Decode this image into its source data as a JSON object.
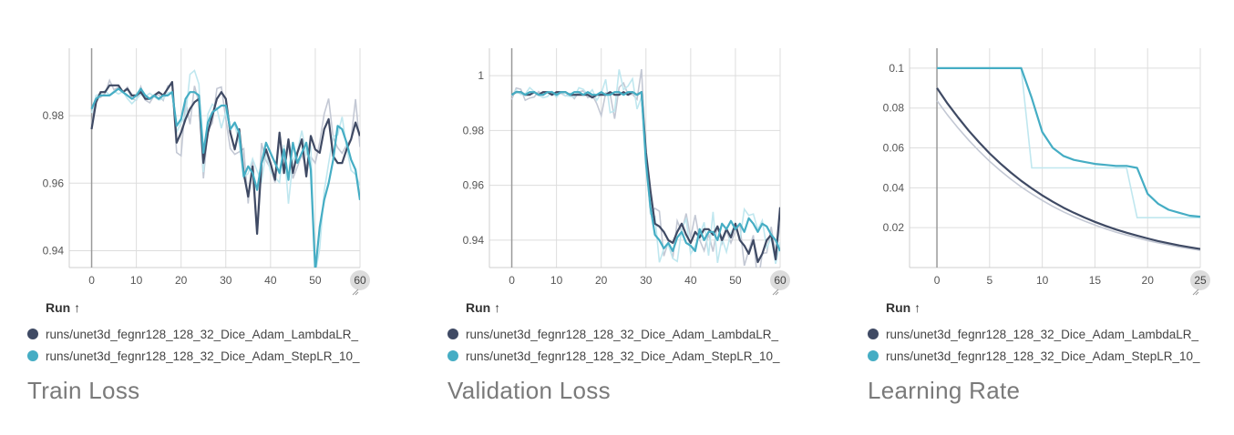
{
  "colors": {
    "dark": "#3f4a64",
    "teal": "#45adc4",
    "dark_faint": "#c3c8d4",
    "teal_faint": "#c0e7ef",
    "grid": "#dddddd"
  },
  "run_header": "Run ↑",
  "legend": [
    {
      "label": "runs/unet3d_fegnr128_128_32_Dice_Adam_LambdaLR_",
      "color": "#3f4a64"
    },
    {
      "label": "runs/unet3d_fegnr128_128_32_Dice_Adam_StepLR_10_",
      "color": "#45adc4"
    }
  ],
  "panels": [
    {
      "title": "Train Loss",
      "badge": "60"
    },
    {
      "title": "Validation Loss",
      "badge": "60"
    },
    {
      "title": "Learning Rate",
      "badge": "25"
    }
  ],
  "chart_data": [
    {
      "type": "line",
      "title": "Train Loss",
      "xlim": [
        -5,
        60
      ],
      "ylim": [
        0.935,
        1.0
      ],
      "xticks": [
        0,
        10,
        20,
        30,
        40,
        50,
        60
      ],
      "yticks": [
        0.94,
        0.96,
        0.98
      ],
      "ytick_labels": [
        "0.94",
        "0.96",
        "0.98"
      ],
      "grid": true,
      "series": [
        {
          "name": "runs/unet3d_fegnr128_128_32_Dice_Adam_LambdaLR_",
          "color": "#3f4a64",
          "x": [
            0,
            1,
            2,
            3,
            4,
            5,
            6,
            7,
            8,
            9,
            10,
            11,
            12,
            13,
            14,
            15,
            16,
            17,
            18,
            19,
            20,
            21,
            22,
            23,
            24,
            25,
            26,
            27,
            28,
            29,
            30,
            31,
            32,
            33,
            34,
            35,
            36,
            37,
            38,
            39,
            40,
            41,
            42,
            43,
            44,
            45,
            46,
            47,
            48,
            49,
            50,
            51,
            52,
            53,
            54,
            55,
            56,
            57,
            58,
            59,
            60
          ],
          "y": [
            0.976,
            0.984,
            0.987,
            0.987,
            0.989,
            0.989,
            0.989,
            0.987,
            0.988,
            0.986,
            0.986,
            0.987,
            0.985,
            0.985,
            0.986,
            0.987,
            0.986,
            0.988,
            0.99,
            0.972,
            0.975,
            0.979,
            0.982,
            0.984,
            0.985,
            0.966,
            0.975,
            0.98,
            0.985,
            0.987,
            0.985,
            0.975,
            0.97,
            0.976,
            0.963,
            0.956,
            0.965,
            0.945,
            0.966,
            0.97,
            0.966,
            0.961,
            0.975,
            0.963,
            0.973,
            0.963,
            0.969,
            0.973,
            0.962,
            0.974,
            0.97,
            0.969,
            0.976,
            0.979,
            0.968,
            0.966,
            0.966,
            0.97,
            0.973,
            0.978,
            0.974
          ]
        },
        {
          "name": "runs/unet3d_fegnr128_128_32_Dice_Adam_StepLR_10_",
          "color": "#45adc4",
          "x": [
            0,
            1,
            2,
            3,
            4,
            5,
            6,
            7,
            8,
            9,
            10,
            11,
            12,
            13,
            14,
            15,
            16,
            17,
            18,
            19,
            20,
            21,
            22,
            23,
            24,
            25,
            26,
            27,
            28,
            29,
            30,
            31,
            32,
            33,
            34,
            35,
            36,
            37,
            38,
            39,
            40,
            41,
            42,
            43,
            44,
            45,
            46,
            47,
            48,
            49,
            50,
            51,
            52,
            53,
            54,
            55,
            56,
            57,
            58,
            59,
            60
          ],
          "y": [
            0.982,
            0.985,
            0.986,
            0.986,
            0.986,
            0.987,
            0.988,
            0.987,
            0.986,
            0.985,
            0.986,
            0.988,
            0.986,
            0.985,
            0.986,
            0.985,
            0.986,
            0.986,
            0.987,
            0.977,
            0.979,
            0.985,
            0.987,
            0.987,
            0.986,
            0.969,
            0.978,
            0.981,
            0.982,
            0.983,
            0.983,
            0.976,
            0.978,
            0.975,
            0.962,
            0.965,
            0.963,
            0.958,
            0.966,
            0.972,
            0.969,
            0.966,
            0.963,
            0.97,
            0.961,
            0.972,
            0.966,
            0.969,
            0.972,
            0.964,
            0.934,
            0.947,
            0.955,
            0.96,
            0.967,
            0.977,
            0.976,
            0.972,
            0.967,
            0.964,
            0.955
          ]
        }
      ]
    },
    {
      "type": "line",
      "title": "Validation Loss",
      "xlim": [
        -5,
        60
      ],
      "ylim": [
        0.93,
        1.01
      ],
      "xticks": [
        0,
        10,
        20,
        30,
        40,
        50,
        60
      ],
      "yticks": [
        0.94,
        0.96,
        0.98,
        1.0
      ],
      "ytick_labels": [
        "0.94",
        "0.96",
        "0.98",
        "1"
      ],
      "grid": true,
      "series": [
        {
          "name": "runs/unet3d_fegnr128_128_32_Dice_Adam_LambdaLR_",
          "color": "#3f4a64",
          "x": [
            0,
            1,
            2,
            3,
            4,
            5,
            6,
            7,
            8,
            9,
            10,
            11,
            12,
            13,
            14,
            15,
            16,
            17,
            18,
            19,
            20,
            21,
            22,
            23,
            24,
            25,
            26,
            27,
            28,
            29,
            30,
            31,
            32,
            33,
            34,
            35,
            36,
            37,
            38,
            39,
            40,
            41,
            42,
            43,
            44,
            45,
            46,
            47,
            48,
            49,
            50,
            51,
            52,
            53,
            54,
            55,
            56,
            57,
            58,
            59,
            60
          ],
          "y": [
            0.993,
            0.994,
            0.994,
            0.993,
            0.993,
            0.994,
            0.993,
            0.994,
            0.994,
            0.993,
            0.994,
            0.994,
            0.994,
            0.993,
            0.993,
            0.993,
            0.993,
            0.993,
            0.992,
            0.993,
            0.993,
            0.993,
            0.994,
            0.993,
            0.993,
            0.994,
            0.993,
            0.994,
            0.993,
            0.994,
            0.972,
            0.958,
            0.946,
            0.945,
            0.943,
            0.94,
            0.939,
            0.943,
            0.946,
            0.942,
            0.939,
            0.943,
            0.941,
            0.944,
            0.944,
            0.942,
            0.945,
            0.94,
            0.944,
            0.941,
            0.946,
            0.94,
            0.938,
            0.935,
            0.94,
            0.932,
            0.935,
            0.94,
            0.942,
            0.933,
            0.952
          ]
        },
        {
          "name": "runs/unet3d_fegnr128_128_32_Dice_Adam_StepLR_10_",
          "color": "#45adc4",
          "x": [
            0,
            1,
            2,
            3,
            4,
            5,
            6,
            7,
            8,
            9,
            10,
            11,
            12,
            13,
            14,
            15,
            16,
            17,
            18,
            19,
            20,
            21,
            22,
            23,
            24,
            25,
            26,
            27,
            28,
            29,
            30,
            31,
            32,
            33,
            34,
            35,
            36,
            37,
            38,
            39,
            40,
            41,
            42,
            43,
            44,
            45,
            46,
            47,
            48,
            49,
            50,
            51,
            52,
            53,
            54,
            55,
            56,
            57,
            58,
            59,
            60
          ],
          "y": [
            0.993,
            0.994,
            0.994,
            0.993,
            0.994,
            0.994,
            0.993,
            0.993,
            0.994,
            0.994,
            0.993,
            0.994,
            0.994,
            0.993,
            0.994,
            0.994,
            0.993,
            0.994,
            0.993,
            0.993,
            0.994,
            0.993,
            0.993,
            0.994,
            0.994,
            0.993,
            0.994,
            0.994,
            0.993,
            0.994,
            0.968,
            0.952,
            0.942,
            0.94,
            0.937,
            0.939,
            0.936,
            0.941,
            0.943,
            0.939,
            0.938,
            0.936,
            0.944,
            0.94,
            0.943,
            0.943,
            0.94,
            0.946,
            0.944,
            0.947,
            0.944,
            0.946,
            0.943,
            0.948,
            0.946,
            0.943,
            0.946,
            0.945,
            0.942,
            0.94,
            0.936
          ]
        }
      ]
    },
    {
      "type": "line",
      "title": "Learning Rate",
      "xlim": [
        -2.6,
        25
      ],
      "ylim": [
        0.0,
        0.11
      ],
      "xticks": [
        0,
        5,
        10,
        15,
        20,
        25
      ],
      "yticks": [
        0.02,
        0.04,
        0.06,
        0.08,
        0.1
      ],
      "ytick_labels": [
        "0.02",
        "0.04",
        "0.06",
        "0.08",
        "0.1"
      ],
      "grid": true,
      "series": [
        {
          "name": "runs/unet3d_fegnr128_128_32_Dice_Adam_LambdaLR_",
          "color": "#3f4a64",
          "x": [
            0,
            1,
            2,
            3,
            4,
            5,
            6,
            7,
            8,
            9,
            10,
            11,
            12,
            13,
            14,
            15,
            16,
            17,
            18,
            19,
            20,
            21,
            22,
            23,
            24,
            25
          ],
          "y": [
            0.09,
            0.0823,
            0.0753,
            0.0688,
            0.0628,
            0.0573,
            0.0523,
            0.0477,
            0.0435,
            0.0397,
            0.0362,
            0.033,
            0.0301,
            0.0275,
            0.0251,
            0.0229,
            0.0209,
            0.0191,
            0.0175,
            0.016,
            0.0146,
            0.0133,
            0.0122,
            0.0111,
            0.0102,
            0.0093
          ]
        },
        {
          "name": "runs/unet3d_fegnr128_128_32_Dice_Adam_StepLR_10_",
          "color": "#45adc4",
          "x": [
            0,
            1,
            2,
            3,
            4,
            5,
            6,
            7,
            8,
            9,
            10,
            11,
            12,
            13,
            14,
            15,
            16,
            17,
            18,
            19,
            20,
            21,
            22,
            23,
            24,
            25
          ],
          "y": [
            0.1,
            0.1,
            0.1,
            0.1,
            0.1,
            0.1,
            0.1,
            0.1,
            0.1,
            0.085,
            0.068,
            0.06,
            0.056,
            0.054,
            0.053,
            0.052,
            0.0515,
            0.051,
            0.051,
            0.05,
            0.037,
            0.032,
            0.029,
            0.0275,
            0.026,
            0.0255
          ]
        }
      ]
    }
  ]
}
